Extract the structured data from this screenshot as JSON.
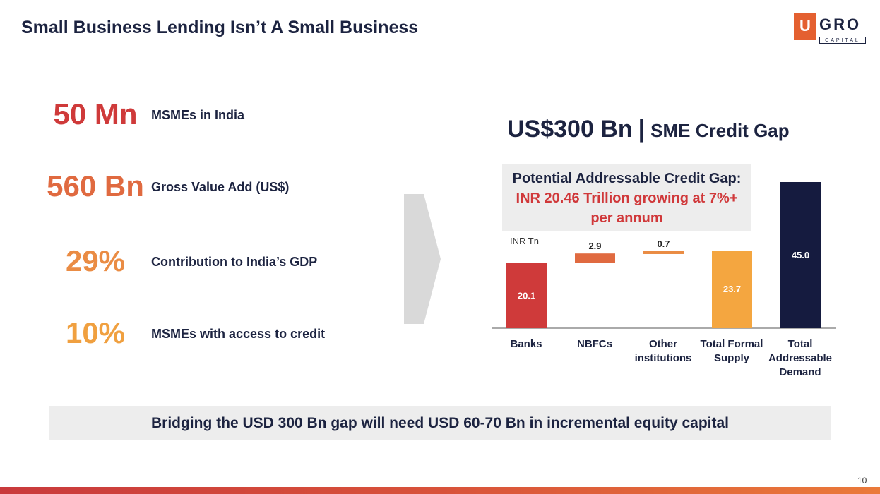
{
  "page": {
    "title": "Small Business Lending Isn’t A Small Business",
    "page_number": "10"
  },
  "logo": {
    "letter": "U",
    "name": "GRO",
    "sub": "CAPITAL"
  },
  "stats": [
    {
      "value": "50 Mn",
      "label": "MSMEs in India",
      "color": "#cf3a3a"
    },
    {
      "value": "560 Bn",
      "label": "Gross Value Add (US$)",
      "color": "#e06a40"
    },
    {
      "value": "29%",
      "label": "Contribution to India’s GDP",
      "color": "#ea8c44"
    },
    {
      "value": "10%",
      "label": "MSMEs with access to credit",
      "color": "#f0a040"
    }
  ],
  "gap_header": {
    "amount": "US$300 Bn",
    "separator": "|",
    "label": "SME Credit Gap"
  },
  "potential_box": {
    "line1": "Potential Addressable Credit Gap:",
    "line2": "INR 20.46 Trillion growing at 7%+",
    "line3": "per annum"
  },
  "chart_data": {
    "type": "bar",
    "subtype": "waterfall",
    "unit": "INR Tn",
    "categories": [
      "Banks",
      "NBFCs",
      "Other institutions",
      "Total Formal Supply",
      "Total Addressable Demand"
    ],
    "values": [
      20.1,
      2.9,
      0.7,
      23.7,
      45.0
    ],
    "value_labels": [
      "20.1",
      "2.9",
      "0.7",
      "23.7",
      "45.0"
    ],
    "bar_kind": [
      "base",
      "increment",
      "increment",
      "total",
      "total"
    ],
    "colors": [
      "#cf3a3a",
      "#e06a40",
      "#ea8c44",
      "#f4a640",
      "#151b3f"
    ],
    "ylim": [
      0,
      45.0
    ],
    "grid": false,
    "legend": "none"
  },
  "bottom_banner": "Bridging the USD 300 Bn gap will need USD 60-70 Bn in incremental equity capital"
}
